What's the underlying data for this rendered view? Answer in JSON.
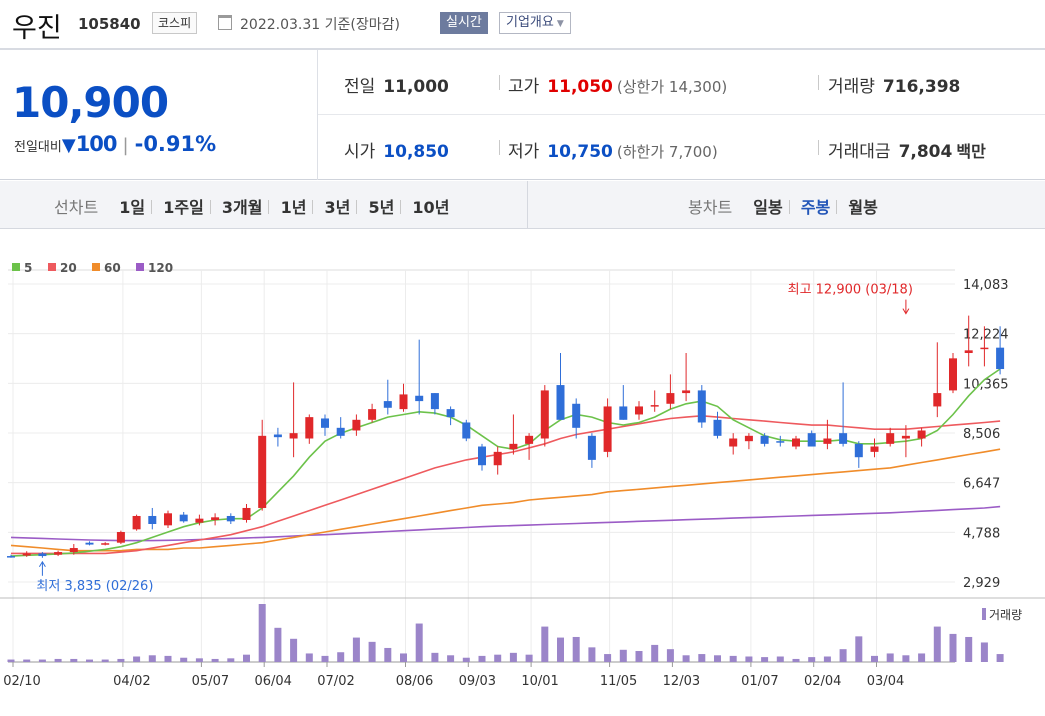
{
  "header": {
    "stock_name": "우진",
    "stock_code": "105840",
    "market": "코스피",
    "date_text": "2022.03.31 기준(장마감)",
    "realtime_label": "실시간",
    "company_label": "기업개요"
  },
  "quote": {
    "price": "10,900",
    "change_label": "전일대비",
    "change_arrow": "▼",
    "change": "100",
    "change_pct": "-0.91%",
    "prev_close_label": "전일",
    "prev_close": "11,000",
    "high_label": "고가",
    "high": "11,050",
    "upper_limit": "(상한가 14,300)",
    "volume_label": "거래량",
    "volume": "716,398",
    "open_label": "시가",
    "open": "10,850",
    "low_label": "저가",
    "low": "10,750",
    "lower_limit": "(하한가 7,700)",
    "amount_label": "거래대금",
    "amount": "7,804",
    "amount_unit": "백만"
  },
  "period_bar": {
    "line_title": "선차트",
    "line_items": [
      "1일",
      "1주일",
      "3개월",
      "1년",
      "3년",
      "5년",
      "10년"
    ],
    "candle_title": "봉차트",
    "candle_items": [
      "일봉",
      "주봉",
      "월봉"
    ],
    "candle_active": "주봉"
  },
  "colors": {
    "up": "#e0282a",
    "down": "#2f6ed8",
    "ma5": "#6cc24a",
    "ma20": "#ee5a5e",
    "ma60": "#f08c2a",
    "ma120": "#9b5cc6",
    "volume": "#9b85c9"
  },
  "chart_data": {
    "type": "candlestick",
    "legend": [
      {
        "name": "5",
        "color": "#6cc24a"
      },
      {
        "name": "20",
        "color": "#ee5a5e"
      },
      {
        "name": "60",
        "color": "#f08c2a"
      },
      {
        "name": "120",
        "color": "#9b5cc6"
      }
    ],
    "y_ticks": [
      "14,083",
      "12,224",
      "10,365",
      "8,506",
      "6,647",
      "4,788",
      "2,929"
    ],
    "ylim": [
      2929,
      14083
    ],
    "x_ticks": [
      "02/10",
      "04/02",
      "05/07",
      "06/04",
      "07/02",
      "08/06",
      "09/03",
      "10/01",
      "11/05",
      "12/03",
      "01/07",
      "02/04",
      "03/04"
    ],
    "x_tick_index": [
      0,
      7,
      12,
      16,
      20,
      25,
      29,
      33,
      38,
      42,
      47,
      51,
      55
    ],
    "annotation_high": "최고 12,900 (03/18)",
    "annotation_high_index": 57,
    "annotation_high_value": 12900,
    "annotation_low": "최저 3,835 (02/26)",
    "annotation_low_index": 2,
    "annotation_low_value": 3835,
    "volume_label": "거래량",
    "candles": [
      {
        "o": 3900,
        "h": 3950,
        "l": 3835,
        "c": 3870
      },
      {
        "o": 3920,
        "h": 4080,
        "l": 3870,
        "c": 4000
      },
      {
        "o": 4000,
        "h": 4050,
        "l": 3835,
        "c": 3900
      },
      {
        "o": 3950,
        "h": 4100,
        "l": 3900,
        "c": 4050
      },
      {
        "o": 4050,
        "h": 4350,
        "l": 3950,
        "c": 4200
      },
      {
        "o": 4400,
        "h": 4450,
        "l": 4300,
        "c": 4330
      },
      {
        "o": 4350,
        "h": 4420,
        "l": 4300,
        "c": 4380
      },
      {
        "o": 4400,
        "h": 4850,
        "l": 4350,
        "c": 4800
      },
      {
        "o": 4900,
        "h": 5450,
        "l": 4850,
        "c": 5400
      },
      {
        "o": 5400,
        "h": 5700,
        "l": 4900,
        "c": 5100
      },
      {
        "o": 5050,
        "h": 5600,
        "l": 4950,
        "c": 5500
      },
      {
        "o": 5450,
        "h": 5550,
        "l": 5150,
        "c": 5200
      },
      {
        "o": 5150,
        "h": 5450,
        "l": 5050,
        "c": 5300
      },
      {
        "o": 5250,
        "h": 5500,
        "l": 5050,
        "c": 5350
      },
      {
        "o": 5400,
        "h": 5500,
        "l": 5100,
        "c": 5200
      },
      {
        "o": 5250,
        "h": 5850,
        "l": 5150,
        "c": 5700
      },
      {
        "o": 5700,
        "h": 9000,
        "l": 5600,
        "c": 8400
      },
      {
        "o": 8450,
        "h": 8700,
        "l": 8000,
        "c": 8350
      },
      {
        "o": 8300,
        "h": 10400,
        "l": 7600,
        "c": 8500
      },
      {
        "o": 8300,
        "h": 9200,
        "l": 8100,
        "c": 9100
      },
      {
        "o": 9050,
        "h": 9200,
        "l": 8400,
        "c": 8700
      },
      {
        "o": 8700,
        "h": 9100,
        "l": 8300,
        "c": 8400
      },
      {
        "o": 8600,
        "h": 9200,
        "l": 8400,
        "c": 9000
      },
      {
        "o": 9000,
        "h": 9600,
        "l": 8900,
        "c": 9400
      },
      {
        "o": 9700,
        "h": 10500,
        "l": 9200,
        "c": 9450
      },
      {
        "o": 9400,
        "h": 10350,
        "l": 9300,
        "c": 9950
      },
      {
        "o": 9900,
        "h": 12000,
        "l": 9200,
        "c": 9700
      },
      {
        "o": 10000,
        "h": 10000,
        "l": 9200,
        "c": 9400
      },
      {
        "o": 9400,
        "h": 9500,
        "l": 8800,
        "c": 9100
      },
      {
        "o": 8900,
        "h": 9000,
        "l": 8200,
        "c": 8300
      },
      {
        "o": 8000,
        "h": 8100,
        "l": 7100,
        "c": 7300
      },
      {
        "o": 7300,
        "h": 8000,
        "l": 6950,
        "c": 7800
      },
      {
        "o": 7900,
        "h": 9200,
        "l": 7700,
        "c": 8100
      },
      {
        "o": 8100,
        "h": 8500,
        "l": 7500,
        "c": 8400
      },
      {
        "o": 8300,
        "h": 10300,
        "l": 8000,
        "c": 10100
      },
      {
        "o": 10300,
        "h": 11500,
        "l": 9000,
        "c": 9000
      },
      {
        "o": 9600,
        "h": 9800,
        "l": 8300,
        "c": 8700
      },
      {
        "o": 8400,
        "h": 8500,
        "l": 7200,
        "c": 7500
      },
      {
        "o": 7800,
        "h": 9800,
        "l": 7600,
        "c": 9500
      },
      {
        "o": 9500,
        "h": 10300,
        "l": 9000,
        "c": 9000
      },
      {
        "o": 9200,
        "h": 9700,
        "l": 9000,
        "c": 9500
      },
      {
        "o": 9500,
        "h": 10100,
        "l": 9300,
        "c": 9550
      },
      {
        "o": 9600,
        "h": 10700,
        "l": 9400,
        "c": 10000
      },
      {
        "o": 10000,
        "h": 11500,
        "l": 9700,
        "c": 10100
      },
      {
        "o": 10100,
        "h": 10300,
        "l": 8700,
        "c": 8900
      },
      {
        "o": 9000,
        "h": 9300,
        "l": 8300,
        "c": 8400
      },
      {
        "o": 8000,
        "h": 8500,
        "l": 7700,
        "c": 8300
      },
      {
        "o": 8200,
        "h": 8500,
        "l": 7900,
        "c": 8400
      },
      {
        "o": 8400,
        "h": 8500,
        "l": 8000,
        "c": 8100
      },
      {
        "o": 8200,
        "h": 8400,
        "l": 8000,
        "c": 8150
      },
      {
        "o": 8000,
        "h": 8400,
        "l": 7900,
        "c": 8300
      },
      {
        "o": 8500,
        "h": 8600,
        "l": 8000,
        "c": 8000
      },
      {
        "o": 8100,
        "h": 9000,
        "l": 7900,
        "c": 8300
      },
      {
        "o": 8500,
        "h": 10400,
        "l": 8000,
        "c": 8100
      },
      {
        "o": 8100,
        "h": 8200,
        "l": 7200,
        "c": 7600
      },
      {
        "o": 7800,
        "h": 8300,
        "l": 7600,
        "c": 8000
      },
      {
        "o": 8100,
        "h": 8700,
        "l": 8000,
        "c": 8500
      },
      {
        "o": 8300,
        "h": 8800,
        "l": 7600,
        "c": 8400
      },
      {
        "o": 8300,
        "h": 8700,
        "l": 8000,
        "c": 8600
      },
      {
        "o": 9500,
        "h": 11900,
        "l": 9100,
        "c": 10000
      },
      {
        "o": 10100,
        "h": 11500,
        "l": 10000,
        "c": 11300
      },
      {
        "o": 11500,
        "h": 12900,
        "l": 11000,
        "c": 11600
      },
      {
        "o": 11700,
        "h": 12500,
        "l": 11000,
        "c": 11700
      },
      {
        "o": 11700,
        "h": 12500,
        "l": 10700,
        "c": 10900
      }
    ],
    "ma5": [
      3900,
      3930,
      3950,
      3980,
      4020,
      4080,
      4150,
      4250,
      4400,
      4600,
      4800,
      5000,
      5150,
      5250,
      5300,
      5300,
      5700,
      6300,
      6900,
      7600,
      8200,
      8500,
      8700,
      8900,
      9100,
      9200,
      9300,
      9250,
      9100,
      8800,
      8400,
      8000,
      7900,
      8100,
      8600,
      9000,
      9200,
      9100,
      8900,
      8800,
      8900,
      9100,
      9400,
      9600,
      9700,
      9500,
      9000,
      8700,
      8400,
      8250,
      8200,
      8200,
      8200,
      8250,
      8100,
      8100,
      8150,
      8200,
      8300,
      8600,
      9200,
      9900,
      10500,
      10900
    ],
    "ma20": [
      4000,
      4000,
      4000,
      4000,
      4000,
      4000,
      4000,
      4050,
      4100,
      4200,
      4300,
      4400,
      4500,
      4600,
      4700,
      4850,
      5000,
      5200,
      5400,
      5600,
      5800,
      6000,
      6200,
      6400,
      6600,
      6800,
      7000,
      7200,
      7350,
      7500,
      7600,
      7700,
      7800,
      7950,
      8100,
      8300,
      8450,
      8550,
      8650,
      8750,
      8850,
      8950,
      9050,
      9100,
      9150,
      9100,
      9050,
      9000,
      8950,
      8900,
      8850,
      8800,
      8800,
      8750,
      8700,
      8650,
      8650,
      8650,
      8700,
      8750,
      8800,
      8850,
      8900,
      8950
    ],
    "ma60": [
      4300,
      4250,
      4200,
      4150,
      4100,
      4100,
      4100,
      4100,
      4150,
      4150,
      4150,
      4200,
      4200,
      4250,
      4300,
      4350,
      4400,
      4500,
      4600,
      4700,
      4800,
      4900,
      5000,
      5100,
      5200,
      5300,
      5400,
      5500,
      5600,
      5700,
      5800,
      5850,
      5900,
      6000,
      6050,
      6100,
      6150,
      6200,
      6300,
      6350,
      6400,
      6450,
      6500,
      6550,
      6600,
      6650,
      6700,
      6750,
      6800,
      6850,
      6900,
      6950,
      7000,
      7050,
      7100,
      7150,
      7200,
      7300,
      7400,
      7500,
      7600,
      7700,
      7800,
      7900
    ],
    "ma120": [
      4600,
      4580,
      4560,
      4540,
      4520,
      4500,
      4490,
      4480,
      4480,
      4480,
      4490,
      4500,
      4520,
      4540,
      4560,
      4580,
      4600,
      4620,
      4650,
      4680,
      4700,
      4730,
      4760,
      4790,
      4820,
      4850,
      4880,
      4910,
      4940,
      4970,
      5000,
      5020,
      5040,
      5060,
      5080,
      5100,
      5120,
      5140,
      5160,
      5180,
      5200,
      5220,
      5240,
      5260,
      5280,
      5300,
      5320,
      5340,
      5360,
      5380,
      5400,
      5420,
      5440,
      5460,
      5480,
      5500,
      5520,
      5550,
      5580,
      5610,
      5640,
      5670,
      5700,
      5750
    ],
    "volume": [
      4,
      4,
      4,
      5,
      5,
      4,
      4,
      5,
      9,
      11,
      10,
      7,
      6,
      5,
      6,
      12,
      95,
      56,
      38,
      14,
      10,
      16,
      40,
      33,
      23,
      14,
      63,
      15,
      11,
      7,
      10,
      12,
      15,
      12,
      58,
      40,
      41,
      24,
      13,
      20,
      18,
      28,
      21,
      11,
      13,
      11,
      10,
      9,
      8,
      9,
      5,
      8,
      9,
      21,
      42,
      10,
      14,
      11,
      14,
      58,
      46,
      41,
      32,
      13
    ],
    "volume_max": 95
  }
}
